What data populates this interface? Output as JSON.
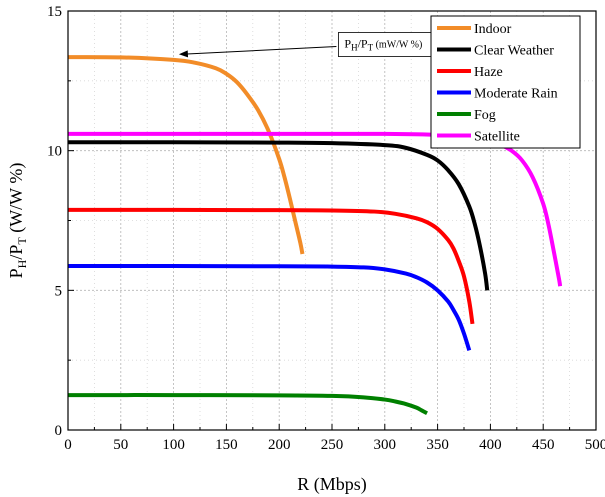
{
  "chart_data": {
    "type": "line",
    "xlabel": "R (Mbps)",
    "ylabel_main": "P",
    "ylabel_sub1": "H",
    "ylabel_mid": "/P",
    "ylabel_sub2": "T",
    "ylabel_unit": " (W/W %)",
    "xlim": [
      0,
      500
    ],
    "ylim": [
      0,
      15
    ],
    "xticks": [
      0,
      50,
      100,
      150,
      200,
      250,
      300,
      350,
      400,
      450,
      500
    ],
    "yticks": [
      0,
      5,
      10,
      15
    ],
    "grid": true,
    "legend_position": "top-right",
    "annotation": {
      "text_main": "P",
      "text_sub1": "H",
      "text_mid": "/P",
      "text_sub2": "T",
      "text_unit": "  (mW/W %)",
      "arrow_to": [
        105,
        13.45
      ],
      "box_at": [
        275,
        13.8
      ]
    },
    "series": [
      {
        "name": "Indoor",
        "color": "#F28C28",
        "x": [
          0,
          50,
          100,
          120,
          140,
          150,
          160,
          170,
          180,
          190,
          200,
          205,
          210,
          215,
          220,
          222
        ],
        "y": [
          13.35,
          13.34,
          13.25,
          13.15,
          12.95,
          12.75,
          12.45,
          12.0,
          11.45,
          10.7,
          9.7,
          9.05,
          8.3,
          7.5,
          6.7,
          6.3
        ]
      },
      {
        "name": "Clear Weather",
        "color": "#000000",
        "x": [
          0,
          100,
          200,
          250,
          300,
          320,
          340,
          350,
          360,
          370,
          380,
          385,
          390,
          395,
          397
        ],
        "y": [
          10.3,
          10.3,
          10.29,
          10.27,
          10.2,
          10.1,
          9.85,
          9.65,
          9.3,
          8.8,
          8.0,
          7.4,
          6.6,
          5.6,
          5.0
        ]
      },
      {
        "name": "Haze",
        "color": "#FF0000",
        "x": [
          0,
          100,
          200,
          250,
          290,
          310,
          330,
          340,
          350,
          360,
          365,
          370,
          375,
          380,
          383
        ],
        "y": [
          7.88,
          7.88,
          7.87,
          7.86,
          7.82,
          7.74,
          7.58,
          7.44,
          7.2,
          6.8,
          6.5,
          6.05,
          5.5,
          4.6,
          3.8
        ]
      },
      {
        "name": "Moderate Rain",
        "color": "#0000FF",
        "x": [
          0,
          100,
          200,
          250,
          280,
          300,
          320,
          330,
          340,
          350,
          360,
          365,
          370,
          375,
          380
        ],
        "y": [
          5.87,
          5.87,
          5.86,
          5.85,
          5.82,
          5.75,
          5.6,
          5.47,
          5.28,
          5.0,
          4.6,
          4.3,
          3.95,
          3.45,
          2.85
        ]
      },
      {
        "name": "Fog",
        "color": "#008000",
        "x": [
          0,
          100,
          200,
          250,
          280,
          300,
          310,
          320,
          330,
          335,
          340
        ],
        "y": [
          1.25,
          1.25,
          1.24,
          1.22,
          1.17,
          1.09,
          1.02,
          0.93,
          0.8,
          0.7,
          0.6
        ]
      },
      {
        "name": "Satellite",
        "color": "#FF00FF",
        "x": [
          0,
          100,
          200,
          300,
          360,
          390,
          410,
          420,
          430,
          440,
          450,
          455,
          460,
          465,
          466
        ],
        "y": [
          10.6,
          10.6,
          10.6,
          10.6,
          10.55,
          10.42,
          10.2,
          10.0,
          9.65,
          9.05,
          8.1,
          7.35,
          6.4,
          5.4,
          5.15
        ]
      }
    ]
  }
}
